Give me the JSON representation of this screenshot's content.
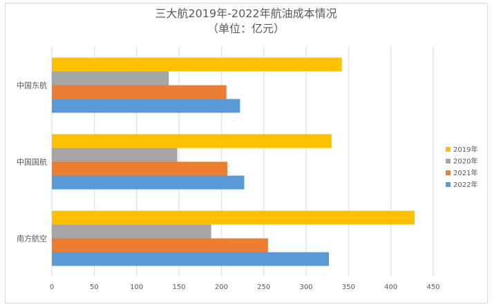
{
  "chart_data": {
    "type": "bar",
    "orientation": "horizontal",
    "title": "三大航2019年-2022年航油成本情况",
    "subtitle": "（单位：亿元）",
    "categories": [
      "南方航空",
      "中国国航",
      "中国东航"
    ],
    "series": [
      {
        "name": "2022年",
        "color": "#5B9BD5",
        "values": [
          327,
          227,
          222
        ]
      },
      {
        "name": "2021年",
        "color": "#ED7D31",
        "values": [
          255,
          207,
          206
        ]
      },
      {
        "name": "2020年",
        "color": "#A5A5A5",
        "values": [
          188,
          148,
          138
        ]
      },
      {
        "name": "2019年",
        "color": "#FFC000",
        "values": [
          428,
          330,
          342
        ]
      }
    ],
    "xlim": [
      0,
      450
    ],
    "xticks": [
      0,
      50,
      100,
      150,
      200,
      250,
      300,
      350,
      400,
      450
    ],
    "grid": "vertical",
    "legend_position": "right"
  }
}
